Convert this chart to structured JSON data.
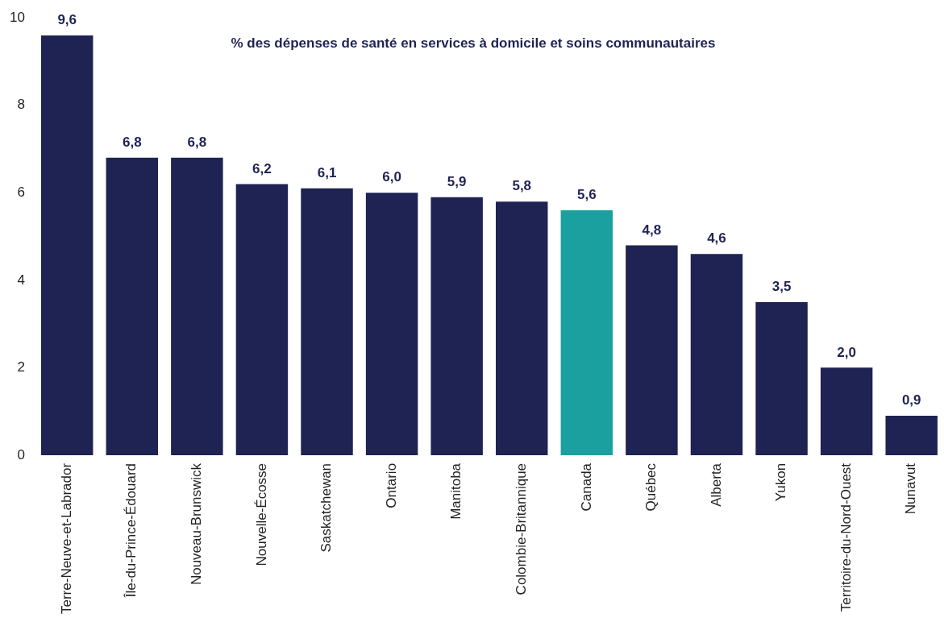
{
  "chart_data": {
    "type": "bar",
    "title": "% des dépenses de santé en services à domicile et soins communautaires",
    "categories": [
      "Terre-Neuve-et-Labrador",
      "Île-du-Prince-Édouard",
      "Nouveau-Brunswick",
      "Nouvelle-Écosse",
      "Saskatchewan",
      "Ontario",
      "Manitoba",
      "Colombie-Britannique",
      "Canada",
      "Québec",
      "Alberta",
      "Yukon",
      "Territoire-du-Nord-Ouest",
      "Nunavut"
    ],
    "values": [
      9.6,
      6.8,
      6.8,
      6.2,
      6.1,
      6.0,
      5.9,
      5.8,
      5.6,
      4.8,
      4.6,
      3.5,
      2.0,
      0.9
    ],
    "value_labels": [
      "9,6",
      "6,8",
      "6,8",
      "6,2",
      "6,1",
      "6,0",
      "5,9",
      "5,8",
      "5,6",
      "4,8",
      "4,6",
      "3,5",
      "2,0",
      "0,9"
    ],
    "colors": [
      "#1e2353",
      "#1e2353",
      "#1e2353",
      "#1e2353",
      "#1e2353",
      "#1e2353",
      "#1e2353",
      "#1e2353",
      "#1aa19f",
      "#1e2353",
      "#1e2353",
      "#1e2353",
      "#1e2353",
      "#1e2353"
    ],
    "ylim": [
      0,
      10
    ],
    "yticks": [
      0,
      2,
      4,
      6,
      8,
      10
    ],
    "grid": false,
    "legend": false
  }
}
